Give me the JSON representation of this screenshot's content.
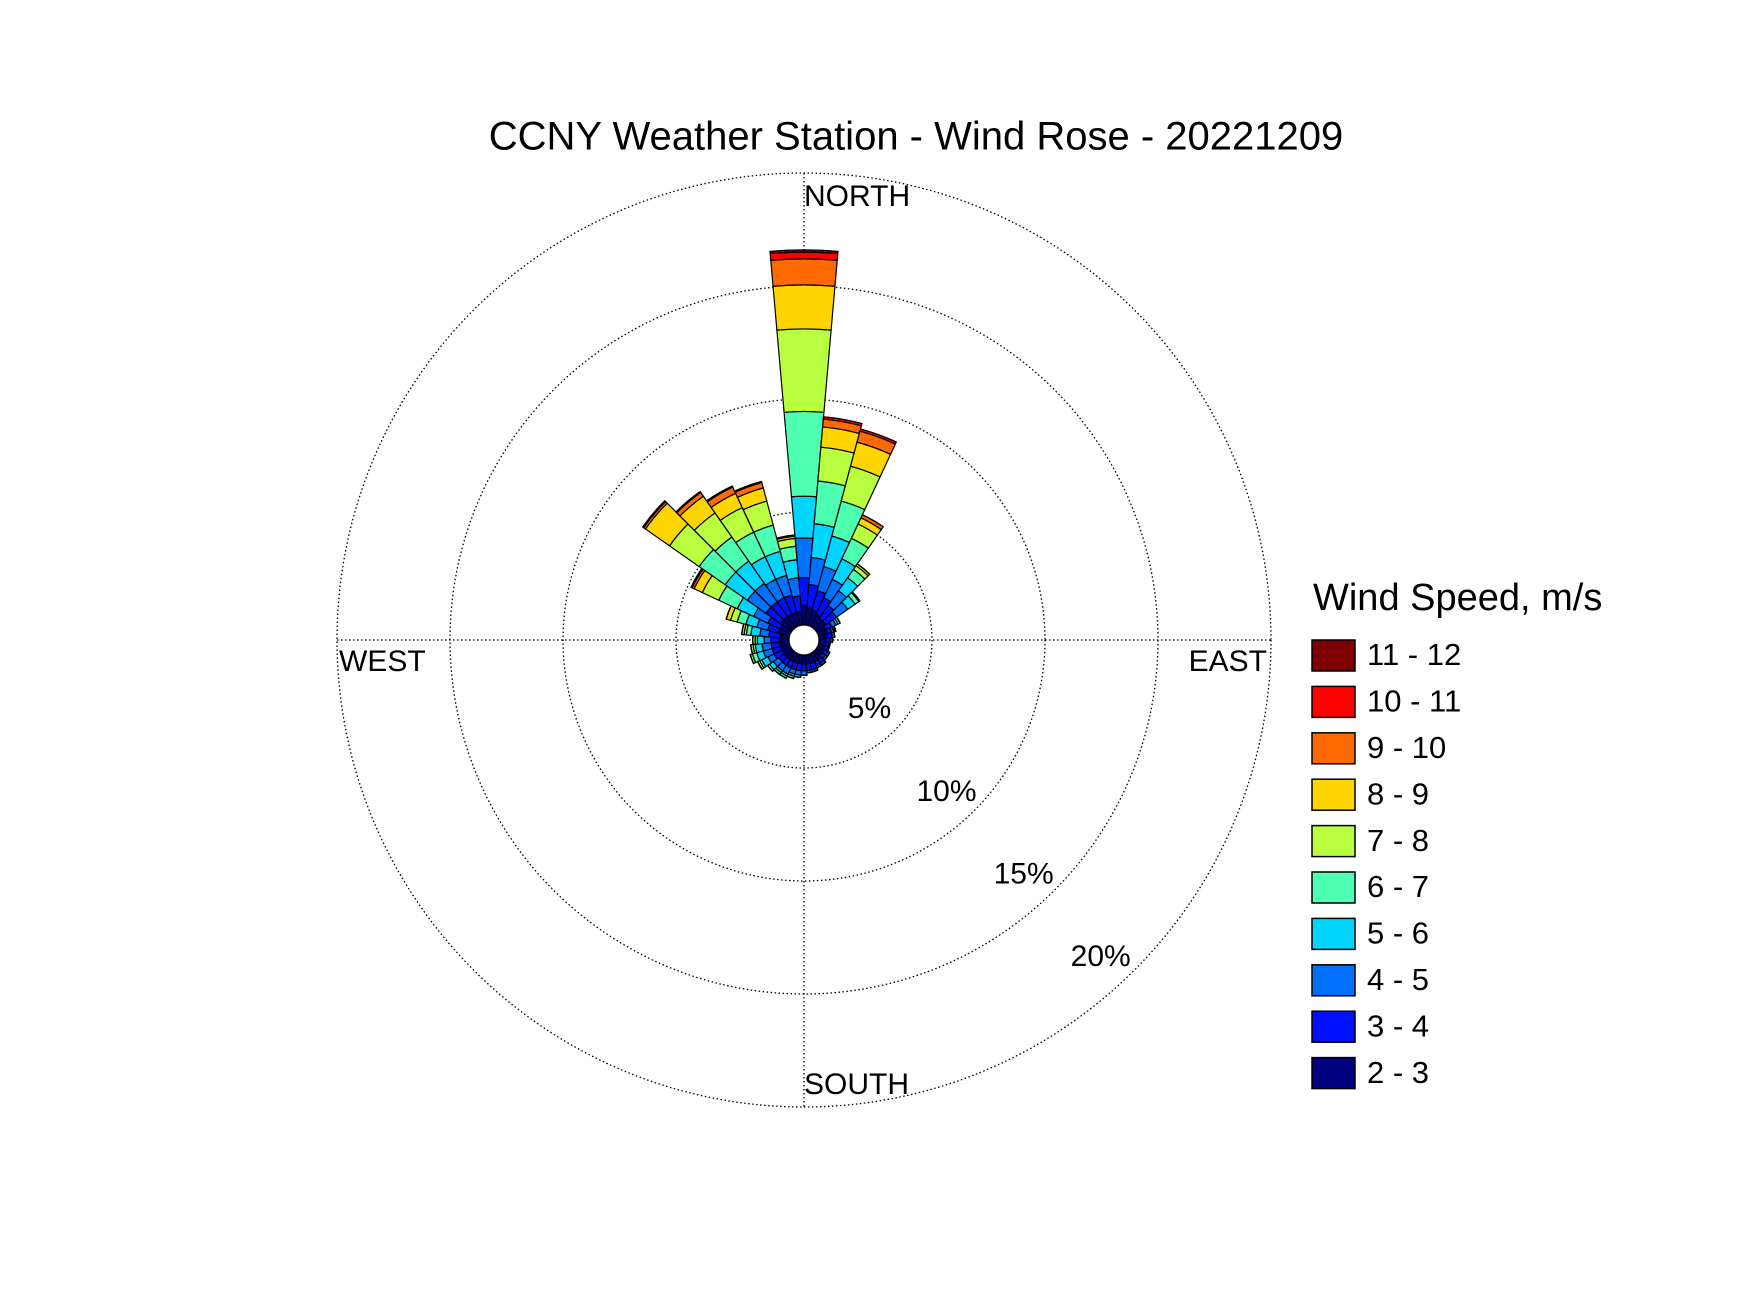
{
  "chart_data": {
    "type": "windrose",
    "title": "CCNY Weather Station - Wind Rose - 20221209",
    "direction_labels": {
      "north": "NORTH",
      "east": "EAST",
      "south": "SOUTH",
      "west": "WEST"
    },
    "x": [
      0,
      10,
      20,
      30,
      40,
      50,
      60,
      70,
      80,
      90,
      100,
      110,
      120,
      130,
      140,
      150,
      160,
      170,
      180,
      190,
      200,
      210,
      220,
      230,
      240,
      250,
      260,
      270,
      280,
      290,
      300,
      310,
      320,
      330,
      340,
      350
    ],
    "rlim": [
      0,
      20
    ],
    "rticks": [
      {
        "value": 5,
        "label": "5%"
      },
      {
        "value": 10,
        "label": "10%"
      },
      {
        "value": 15,
        "label": "15%"
      },
      {
        "value": 20,
        "label": "20%"
      }
    ],
    "grid": true,
    "legend_title": "Wind Speed, m/s",
    "series": [
      {
        "name": "11 - 12",
        "color": "#800000",
        "values": [
          0.1,
          0,
          0,
          0,
          0,
          0,
          0,
          0,
          0,
          0,
          0,
          0,
          0,
          0,
          0,
          0,
          0,
          0,
          0,
          0,
          0,
          0,
          0,
          0,
          0,
          0,
          0,
          0,
          0,
          0,
          0,
          0,
          0,
          0,
          0,
          0
        ]
      },
      {
        "name": "10 - 11",
        "color": "#ff0000",
        "values": [
          0.3,
          0.1,
          0.1,
          0,
          0,
          0,
          0,
          0,
          0,
          0,
          0,
          0,
          0,
          0,
          0,
          0,
          0,
          0,
          0,
          0,
          0,
          0,
          0,
          0,
          0,
          0,
          0,
          0,
          0,
          0,
          0.05,
          0.05,
          0.05,
          0.05,
          0.05,
          0
        ]
      },
      {
        "name": "9 - 10",
        "color": "#ff6a00",
        "values": [
          1.15,
          0.35,
          0.5,
          0.15,
          0,
          0,
          0,
          0,
          0,
          0,
          0,
          0,
          0,
          0,
          0,
          0,
          0,
          0,
          0,
          0,
          0,
          0,
          0,
          0,
          0,
          0,
          0,
          0,
          0,
          0,
          0.1,
          0.1,
          0.2,
          0.3,
          0.25,
          0.05
        ]
      },
      {
        "name": "8 - 9",
        "color": "#ffd500",
        "values": [
          1.95,
          0.9,
          1.1,
          0.3,
          0.1,
          0,
          0,
          0,
          0,
          0,
          0,
          0,
          0,
          0,
          0,
          0,
          0,
          0,
          0,
          0,
          0,
          0,
          0,
          0,
          0,
          0,
          0,
          0,
          0.1,
          0.2,
          0.4,
          1.3,
          0.9,
          0.7,
          0.6,
          0.1
        ]
      },
      {
        "name": "7 - 8",
        "color": "#b8ff40",
        "values": [
          3.65,
          1.5,
          1.6,
          0.7,
          0.2,
          0.05,
          0,
          0,
          0,
          0,
          0,
          0,
          0,
          0,
          0,
          0,
          0,
          0,
          0,
          0,
          0,
          0,
          0,
          0,
          0.1,
          0.1,
          0.1,
          0.1,
          0.1,
          0.3,
          0.8,
          1.6,
          1.3,
          1.2,
          1.1,
          0.35
        ]
      },
      {
        "name": "6 - 7",
        "color": "#4dffb0",
        "values": [
          3.75,
          1.9,
          1.6,
          1.0,
          0.45,
          0.2,
          0.1,
          0.05,
          0,
          0,
          0,
          0,
          0,
          0,
          0,
          0,
          0,
          0,
          0,
          0,
          0.1,
          0.1,
          0.1,
          0.1,
          0.1,
          0.2,
          0.1,
          0.1,
          0.2,
          0.4,
          0.9,
          1.4,
          1.3,
          1.2,
          1.2,
          0.6
        ]
      },
      {
        "name": "5 - 6",
        "color": "#00d5ff",
        "values": [
          1.85,
          1.5,
          1.4,
          1.0,
          0.7,
          0.4,
          0.1,
          0.05,
          0,
          0,
          0,
          0,
          0,
          0,
          0,
          0,
          0,
          0,
          0,
          0.1,
          0.1,
          0.1,
          0.1,
          0.2,
          0.3,
          0.3,
          0.3,
          0.3,
          0.4,
          0.5,
          0.8,
          1.2,
          1.2,
          1.1,
          1.1,
          0.8
        ]
      },
      {
        "name": "4 - 5",
        "color": "#0070ff",
        "values": [
          1.75,
          1.2,
          1.1,
          0.9,
          0.8,
          0.6,
          0.2,
          0.1,
          0.1,
          0.1,
          0.05,
          0.05,
          0.1,
          0.1,
          0.1,
          0.1,
          0.1,
          0.1,
          0.2,
          0.2,
          0.2,
          0.3,
          0.3,
          0.3,
          0.3,
          0.4,
          0.4,
          0.3,
          0.4,
          0.5,
          0.7,
          1.0,
          1.0,
          0.9,
          0.9,
          0.8
        ]
      },
      {
        "name": "3 - 4",
        "color": "#0010ff",
        "values": [
          1.25,
          1.0,
          0.9,
          0.8,
          0.7,
          0.6,
          0.3,
          0.2,
          0.2,
          0.2,
          0.15,
          0.15,
          0.2,
          0.2,
          0.2,
          0.2,
          0.3,
          0.3,
          0.3,
          0.3,
          0.3,
          0.3,
          0.3,
          0.3,
          0.4,
          0.4,
          0.4,
          0.4,
          0.5,
          0.5,
          0.6,
          0.8,
          0.8,
          0.8,
          0.8,
          0.7
        ]
      },
      {
        "name": "2 - 3",
        "color": "#000080",
        "values": [
          0.85,
          0.8,
          0.7,
          0.6,
          0.5,
          0.5,
          0.4,
          0.4,
          0.4,
          0.3,
          0.3,
          0.3,
          0.3,
          0.3,
          0.4,
          0.4,
          0.4,
          0.4,
          0.4,
          0.4,
          0.4,
          0.4,
          0.4,
          0.4,
          0.4,
          0.4,
          0.4,
          0.4,
          0.4,
          0.5,
          0.5,
          0.6,
          0.6,
          0.6,
          0.6,
          0.6
        ]
      }
    ]
  }
}
